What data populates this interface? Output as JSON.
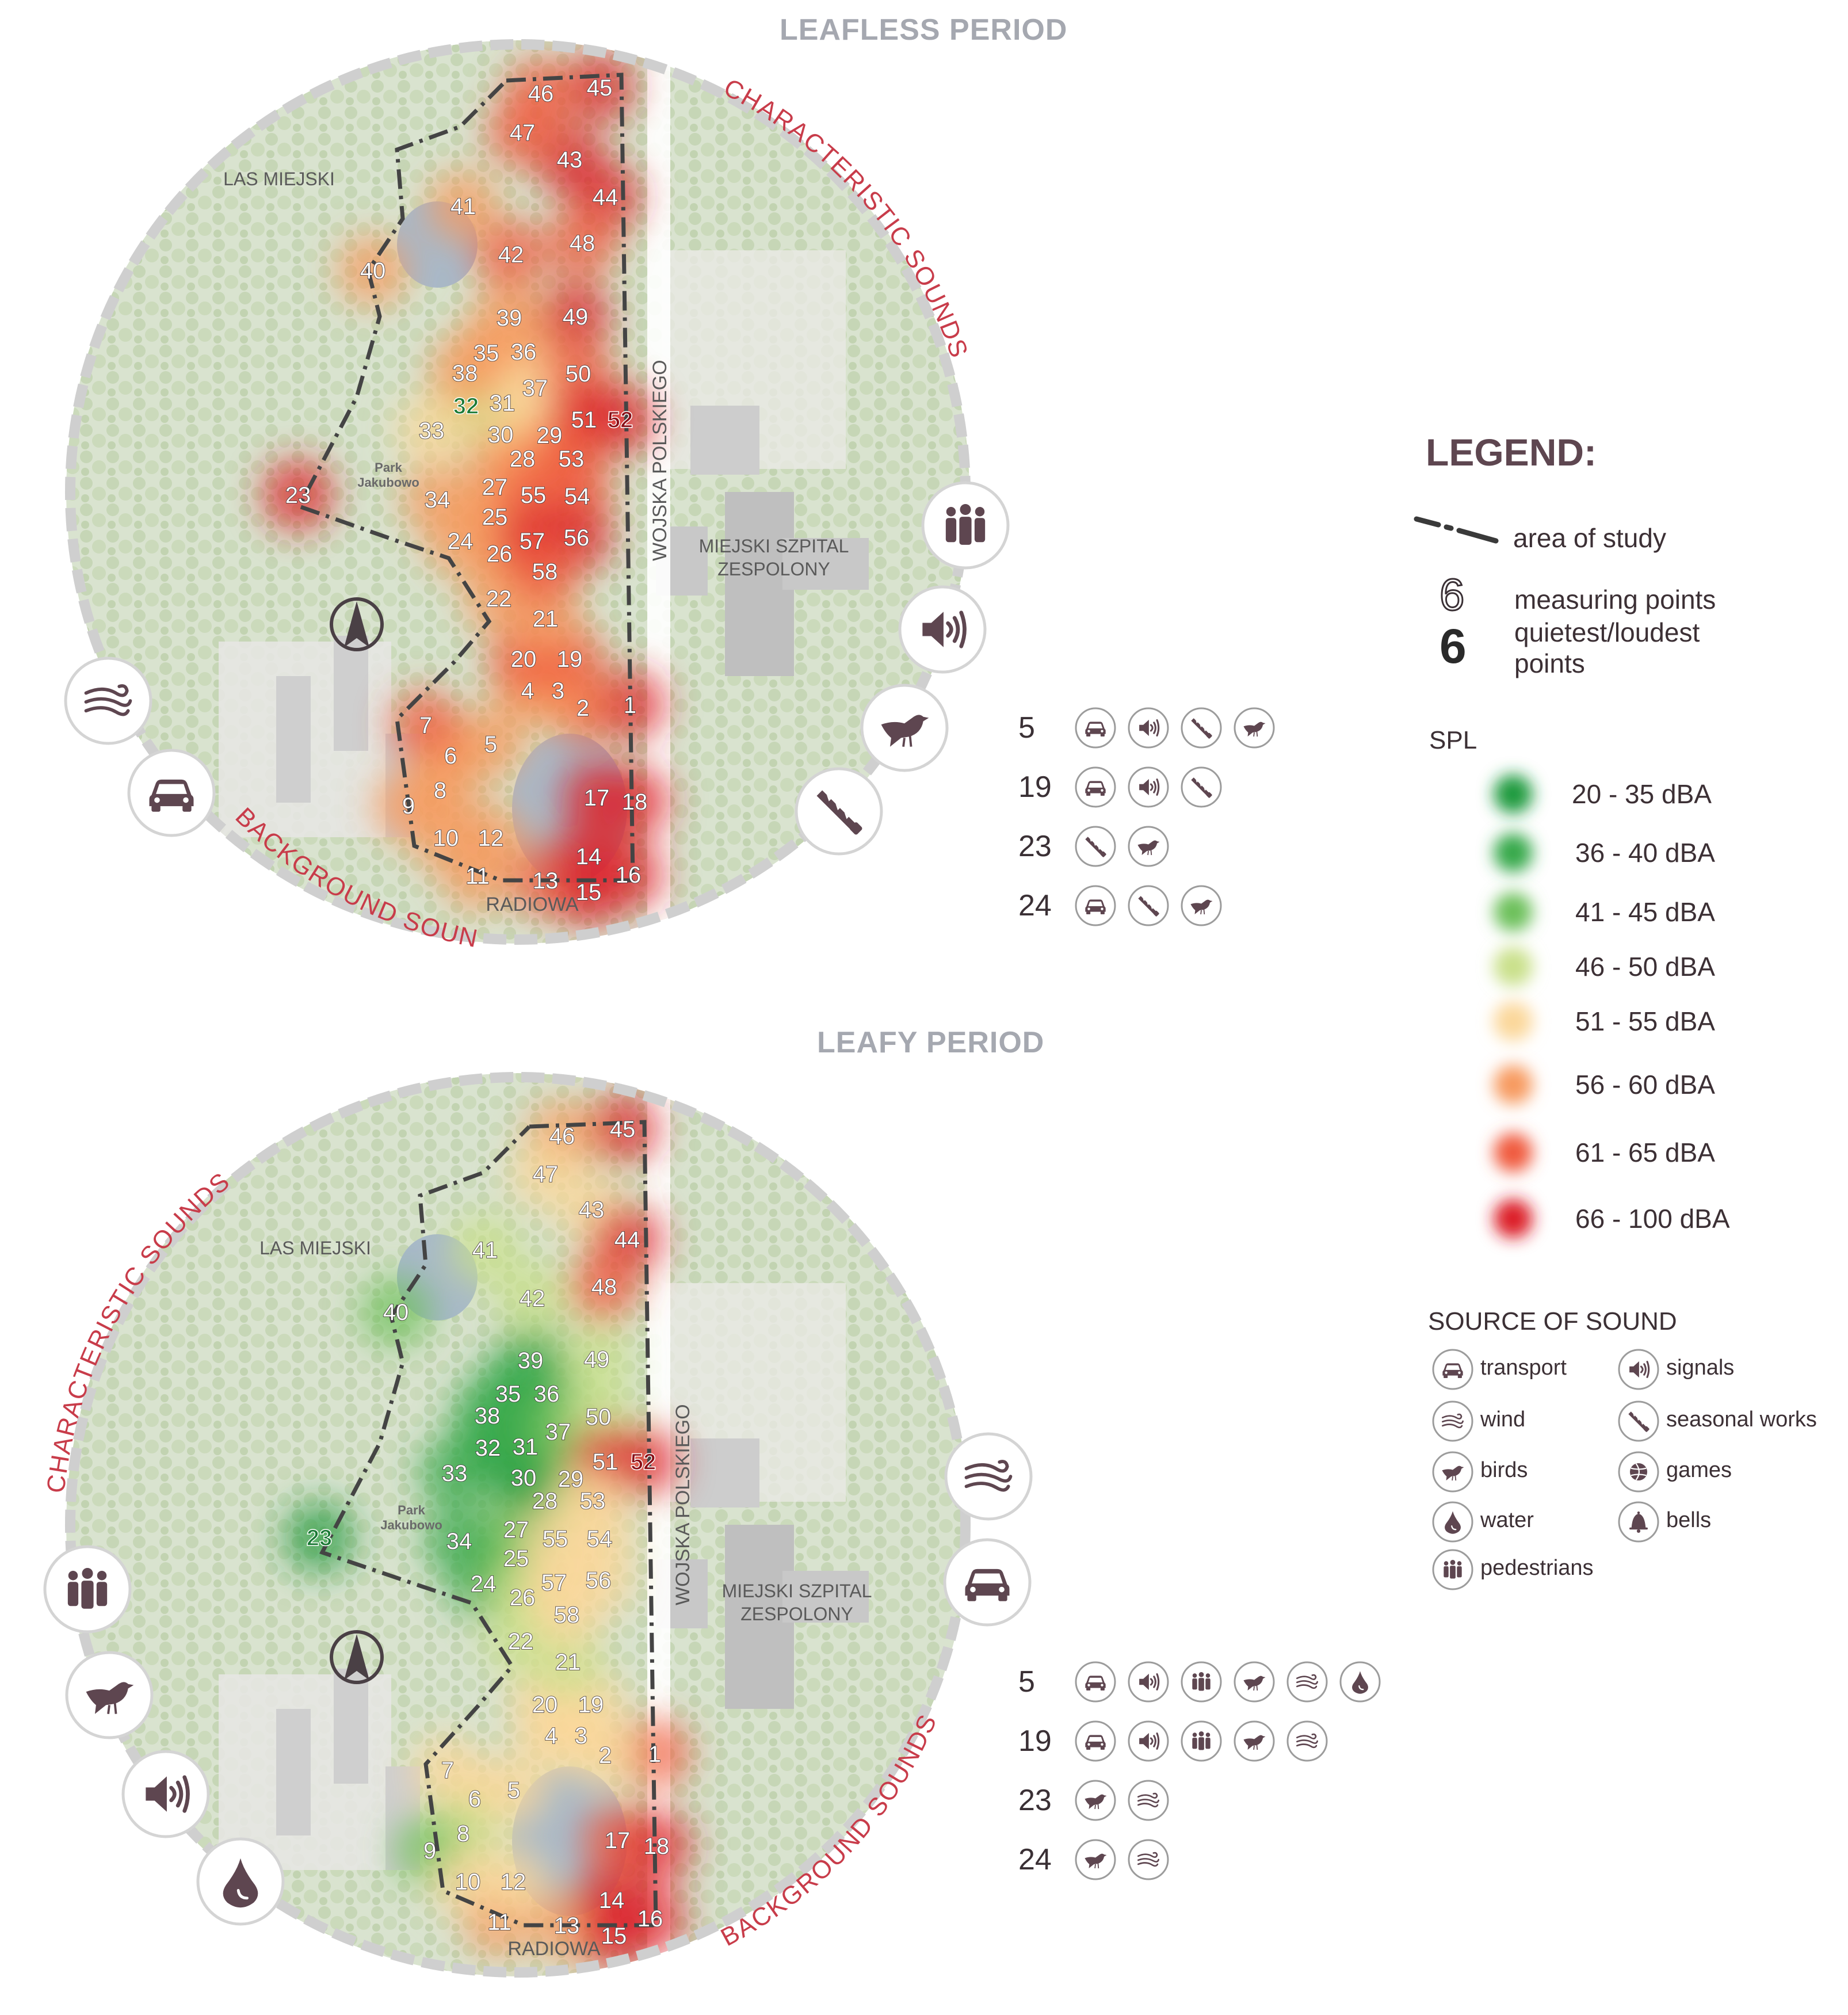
{
  "titles": {
    "leafless": "LEAFLESS PERIOD",
    "leafy": "LEAFY PERIOD"
  },
  "map_labels": {
    "las_miejski": "LAS MIEJSKI",
    "park_jakubowo": [
      "Park",
      "Jakubowo"
    ],
    "wojska_polskiego": "WOJSKA POLSKIEGO",
    "szpital": [
      "MIEJSKI SZPITAL",
      "ZESPOLONY"
    ],
    "radiowa": "RADIOWA",
    "characteristic_sounds": "CHARACTERISTIC SOUNDS",
    "background_sounds": "BACKGROUND SOUNDS",
    "north": "N"
  },
  "legend": {
    "title": "LEGEND:",
    "area_of_study": "area of study",
    "measuring_sample": "6",
    "measuring_points": "measuring points",
    "quietest_loudest_sample": "6",
    "quietest_loudest_1": "quietest/loudest",
    "quietest_loudest_2": "points",
    "spl_title": "SPL",
    "spl_classes": [
      {
        "label": "20 - 35 dBA",
        "color": "#1f9a3c"
      },
      {
        "label": "36 - 40 dBA",
        "color": "#34a84a"
      },
      {
        "label": "41 - 45 dBA",
        "color": "#6cc05a"
      },
      {
        "label": "46 - 50 dBA",
        "color": "#c9e08a"
      },
      {
        "label": "51 - 55 dBA",
        "color": "#fbd79a"
      },
      {
        "label": "56 - 60 dBA",
        "color": "#f79a5e"
      },
      {
        "label": "61 - 65 dBA",
        "color": "#f05a3c"
      },
      {
        "label": "66 - 100 dBA",
        "color": "#dc1f28"
      }
    ],
    "source_title": "SOURCE OF SOUND",
    "sources": [
      {
        "icon": "car-icon",
        "label": "transport"
      },
      {
        "icon": "speaker-icon",
        "label": "signals"
      },
      {
        "icon": "wind-icon",
        "label": "wind"
      },
      {
        "icon": "saw-icon",
        "label": "seasonal works"
      },
      {
        "icon": "bird-icon",
        "label": "birds"
      },
      {
        "icon": "ball-icon",
        "label": "games"
      },
      {
        "icon": "drop-icon",
        "label": "water"
      },
      {
        "icon": "bell-icon",
        "label": "bells"
      },
      {
        "icon": "pedestrians-icon",
        "label": "pedestrians"
      }
    ]
  },
  "sound_tables": {
    "leafless": [
      {
        "point": "5",
        "sources": [
          "car-icon",
          "speaker-icon",
          "saw-icon",
          "bird-icon"
        ]
      },
      {
        "point": "19",
        "sources": [
          "car-icon",
          "speaker-icon",
          "saw-icon"
        ]
      },
      {
        "point": "23",
        "sources": [
          "saw-icon",
          "bird-icon"
        ]
      },
      {
        "point": "24",
        "sources": [
          "car-icon",
          "saw-icon",
          "bird-icon"
        ]
      }
    ],
    "leafy": [
      {
        "point": "5",
        "sources": [
          "car-icon",
          "speaker-icon",
          "pedestrians-icon",
          "bird-icon",
          "wind-icon",
          "drop-icon"
        ]
      },
      {
        "point": "19",
        "sources": [
          "car-icon",
          "speaker-icon",
          "pedestrians-icon",
          "bird-icon",
          "wind-icon"
        ]
      },
      {
        "point": "23",
        "sources": [
          "bird-icon",
          "wind-icon"
        ]
      },
      {
        "point": "24",
        "sources": [
          "bird-icon",
          "wind-icon"
        ]
      }
    ]
  },
  "big_icons": {
    "leafless": [
      "pedestrians-icon",
      "speaker-icon",
      "bird-icon",
      "saw-icon",
      "wind-icon",
      "car-icon"
    ],
    "leafy": [
      "wind-icon",
      "car-icon",
      "pedestrians-icon",
      "bird-icon",
      "speaker-icon",
      "drop-icon"
    ]
  },
  "measurements": {
    "leafless": [
      {
        "p": "1",
        "c": "#dc1f28"
      },
      {
        "p": "2",
        "c": "#f05a3c"
      },
      {
        "p": "3",
        "c": "#f79a5e"
      },
      {
        "p": "4",
        "c": "#f79a5e"
      },
      {
        "p": "5",
        "c": "#f79a5e"
      },
      {
        "p": "6",
        "c": "#f79a5e"
      },
      {
        "p": "7",
        "c": "#f05a3c"
      },
      {
        "p": "8",
        "c": "#f79a5e"
      },
      {
        "p": "9",
        "c": "#f79a5e"
      },
      {
        "p": "10",
        "c": "#f79a5e"
      },
      {
        "p": "11",
        "c": "#f79a5e"
      },
      {
        "p": "12",
        "c": "#f79a5e"
      },
      {
        "p": "13",
        "c": "#f05a3c"
      },
      {
        "p": "14",
        "c": "#dc1f28"
      },
      {
        "p": "15",
        "c": "#dc1f28"
      },
      {
        "p": "16",
        "c": "#dc1f28"
      },
      {
        "p": "17",
        "c": "#dc1f28"
      },
      {
        "p": "18",
        "c": "#dc1f28"
      },
      {
        "p": "19",
        "c": "#f05a3c"
      },
      {
        "p": "20",
        "c": "#f05a3c"
      },
      {
        "p": "21",
        "c": "#f79a5e"
      },
      {
        "p": "22",
        "c": "#f79a5e"
      },
      {
        "p": "23",
        "c": "#dc1f28"
      },
      {
        "p": "24",
        "c": "#f79a5e"
      },
      {
        "p": "25",
        "c": "#f79a5e"
      },
      {
        "p": "26",
        "c": "#f79a5e"
      },
      {
        "p": "27",
        "c": "#f79a5e"
      },
      {
        "p": "28",
        "c": "#f79a5e"
      },
      {
        "p": "29",
        "c": "#f79a5e"
      },
      {
        "p": "30",
        "c": "#f79a5e"
      },
      {
        "p": "31",
        "c": "#fbd79a"
      },
      {
        "p": "32",
        "c": "#c9e08a"
      },
      {
        "p": "33",
        "c": "#fbd79a"
      },
      {
        "p": "34",
        "c": "#f79a5e"
      },
      {
        "p": "35",
        "c": "#f79a5e"
      },
      {
        "p": "36",
        "c": "#f79a5e"
      },
      {
        "p": "37",
        "c": "#fbd79a"
      },
      {
        "p": "38",
        "c": "#f79a5e"
      },
      {
        "p": "39",
        "c": "#f79a5e"
      },
      {
        "p": "40",
        "c": "#f79a5e"
      },
      {
        "p": "41",
        "c": "#f79a5e"
      },
      {
        "p": "42",
        "c": "#f05a3c"
      },
      {
        "p": "43",
        "c": "#dc1f28"
      },
      {
        "p": "44",
        "c": "#dc1f28"
      },
      {
        "p": "45",
        "c": "#dc1f28"
      },
      {
        "p": "46",
        "c": "#f05a3c"
      },
      {
        "p": "47",
        "c": "#f05a3c"
      },
      {
        "p": "48",
        "c": "#f05a3c"
      },
      {
        "p": "49",
        "c": "#dc1f28"
      },
      {
        "p": "50",
        "c": "#f05a3c"
      },
      {
        "p": "51",
        "c": "#dc1f28"
      },
      {
        "p": "52",
        "c": "#dc1f28"
      },
      {
        "p": "53",
        "c": "#f05a3c"
      },
      {
        "p": "54",
        "c": "#f05a3c"
      },
      {
        "p": "55",
        "c": "#f05a3c"
      },
      {
        "p": "56",
        "c": "#dc1f28"
      },
      {
        "p": "57",
        "c": "#dc1f28"
      },
      {
        "p": "58",
        "c": "#f05a3c"
      }
    ],
    "leafy": [
      {
        "p": "1",
        "c": "#f05a3c"
      },
      {
        "p": "2",
        "c": "#fbd79a"
      },
      {
        "p": "3",
        "c": "#fbd79a"
      },
      {
        "p": "4",
        "c": "#fbd79a"
      },
      {
        "p": "5",
        "c": "#fbd79a"
      },
      {
        "p": "6",
        "c": "#fbd79a"
      },
      {
        "p": "7",
        "c": "#fbd79a"
      },
      {
        "p": "8",
        "c": "#c9e08a"
      },
      {
        "p": "9",
        "c": "#6cc05a"
      },
      {
        "p": "10",
        "c": "#fbd79a"
      },
      {
        "p": "11",
        "c": "#f79a5e"
      },
      {
        "p": "12",
        "c": "#fbd79a"
      },
      {
        "p": "13",
        "c": "#f79a5e"
      },
      {
        "p": "14",
        "c": "#dc1f28"
      },
      {
        "p": "15",
        "c": "#dc1f28"
      },
      {
        "p": "16",
        "c": "#dc1f28"
      },
      {
        "p": "17",
        "c": "#f05a3c"
      },
      {
        "p": "18",
        "c": "#dc1f28"
      },
      {
        "p": "19",
        "c": "#fbd79a"
      },
      {
        "p": "20",
        "c": "#fbd79a"
      },
      {
        "p": "21",
        "c": "#c9e08a"
      },
      {
        "p": "22",
        "c": "#c9e08a"
      },
      {
        "p": "23",
        "c": "#1f9a3c"
      },
      {
        "p": "24",
        "c": "#34a84a"
      },
      {
        "p": "25",
        "c": "#6cc05a"
      },
      {
        "p": "26",
        "c": "#c9e08a"
      },
      {
        "p": "27",
        "c": "#6cc05a"
      },
      {
        "p": "28",
        "c": "#6cc05a"
      },
      {
        "p": "29",
        "c": "#c9e08a"
      },
      {
        "p": "30",
        "c": "#1f9a3c"
      },
      {
        "p": "31",
        "c": "#1f9a3c"
      },
      {
        "p": "32",
        "c": "#34a84a"
      },
      {
        "p": "33",
        "c": "#34a84a"
      },
      {
        "p": "34",
        "c": "#34a84a"
      },
      {
        "p": "35",
        "c": "#34a84a"
      },
      {
        "p": "36",
        "c": "#34a84a"
      },
      {
        "p": "37",
        "c": "#6cc05a"
      },
      {
        "p": "38",
        "c": "#34a84a"
      },
      {
        "p": "39",
        "c": "#34a84a"
      },
      {
        "p": "40",
        "c": "#6cc05a"
      },
      {
        "p": "41",
        "c": "#c9e08a"
      },
      {
        "p": "42",
        "c": "#c9e08a"
      },
      {
        "p": "43",
        "c": "#fbd79a"
      },
      {
        "p": "44",
        "c": "#dc1f28"
      },
      {
        "p": "45",
        "c": "#dc1f28"
      },
      {
        "p": "46",
        "c": "#f79a5e"
      },
      {
        "p": "47",
        "c": "#fbd79a"
      },
      {
        "p": "48",
        "c": "#f05a3c"
      },
      {
        "p": "49",
        "c": "#c9e08a"
      },
      {
        "p": "50",
        "c": "#c9e08a"
      },
      {
        "p": "51",
        "c": "#dc1f28"
      },
      {
        "p": "52",
        "c": "#dc1f28"
      },
      {
        "p": "53",
        "c": "#fbd79a"
      },
      {
        "p": "54",
        "c": "#fbd79a"
      },
      {
        "p": "55",
        "c": "#fbd79a"
      },
      {
        "p": "56",
        "c": "#fbd79a"
      },
      {
        "p": "57",
        "c": "#fbd79a"
      },
      {
        "p": "58",
        "c": "#fbd79a"
      }
    ]
  },
  "quietest_loudest": {
    "leafless": [
      "32",
      "52"
    ],
    "leafy": [
      "23",
      "52"
    ]
  },
  "colors": {
    "label_text": "#5e4650",
    "icon_fill": "#5e4650",
    "map_bg": "#dde5d6",
    "street": "#c83c4a",
    "title": "#a5a8b0"
  }
}
